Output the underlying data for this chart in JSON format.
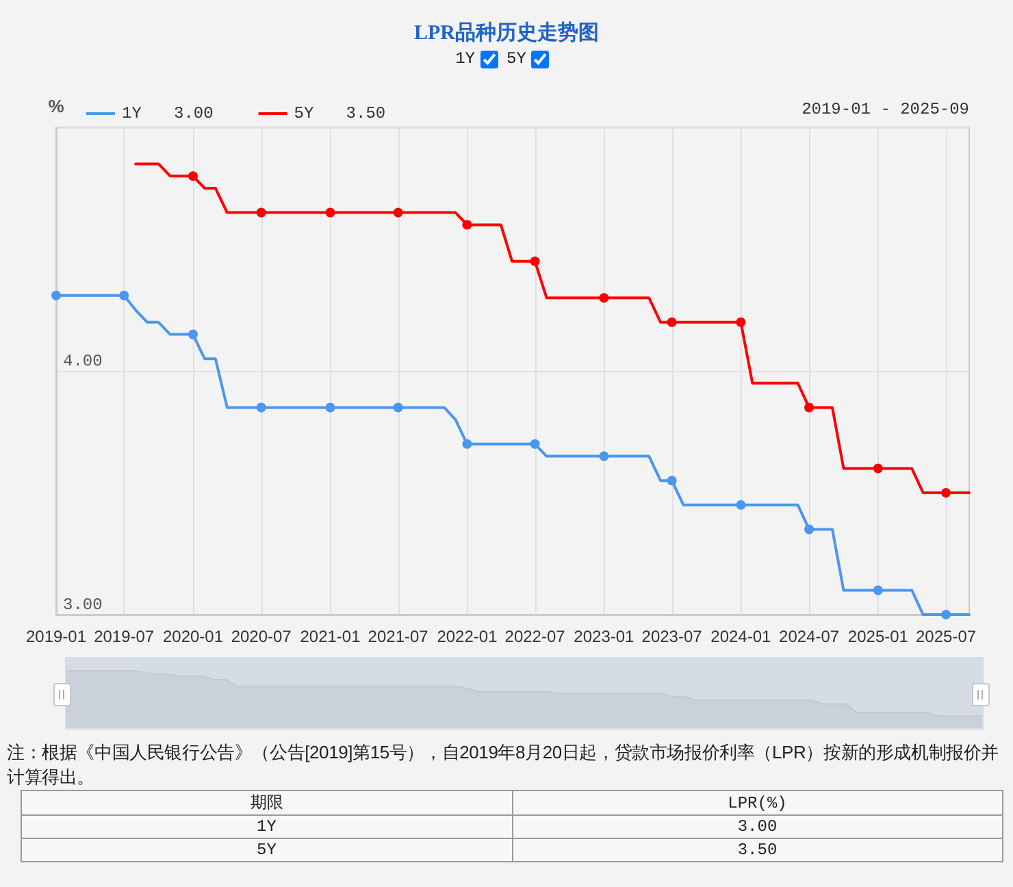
{
  "chart_data": [
    {
      "type": "line",
      "title": "LPR品种历史走势图",
      "ylabel": "%",
      "annotations": [
        "3.00",
        "3.50",
        "2019-01 - 2025-09",
        "注：根据《中国人民银行公告》（公告[2019]第15号），自2019年8月20日起，贷款市场报价利率（LPR）按新的形成机制报价并计算得出。"
      ],
      "series": [
        {
          "name": "1Y",
          "color": "#4a97ee",
          "x": [
            "2019-01",
            "2019-02",
            "2019-03",
            "2019-04",
            "2019-05",
            "2019-06",
            "2019-07",
            "2019-08",
            "2019-09",
            "2019-10",
            "2019-11",
            "2019-12",
            "2020-01",
            "2020-02",
            "2020-03",
            "2020-04",
            "2020-05",
            "2020-06",
            "2020-07",
            "2020-08",
            "2020-09",
            "2020-10",
            "2020-11",
            "2020-12",
            "2021-01",
            "2021-02",
            "2021-03",
            "2021-04",
            "2021-05",
            "2021-06",
            "2021-07",
            "2021-08",
            "2021-09",
            "2021-10",
            "2021-11",
            "2021-12",
            "2022-01",
            "2022-02",
            "2022-03",
            "2022-04",
            "2022-05",
            "2022-06",
            "2022-07",
            "2022-08",
            "2022-09",
            "2022-10",
            "2022-11",
            "2022-12",
            "2023-01",
            "2023-02",
            "2023-03",
            "2023-04",
            "2023-05",
            "2023-06",
            "2023-07",
            "2023-08",
            "2023-09",
            "2023-10",
            "2023-11",
            "2023-12",
            "2024-01",
            "2024-02",
            "2024-03",
            "2024-04",
            "2024-05",
            "2024-06",
            "2024-07",
            "2024-08",
            "2024-09",
            "2024-10",
            "2024-11",
            "2024-12",
            "2025-01",
            "2025-02",
            "2025-03",
            "2025-04",
            "2025-05",
            "2025-06",
            "2025-07",
            "2025-08",
            "2025-09"
          ],
          "values": [
            4.31,
            4.31,
            4.31,
            4.31,
            4.31,
            4.31,
            4.31,
            4.25,
            4.2,
            4.2,
            4.15,
            4.15,
            4.15,
            4.05,
            4.05,
            3.85,
            3.85,
            3.85,
            3.85,
            3.85,
            3.85,
            3.85,
            3.85,
            3.85,
            3.85,
            3.85,
            3.85,
            3.85,
            3.85,
            3.85,
            3.85,
            3.85,
            3.85,
            3.85,
            3.85,
            3.8,
            3.7,
            3.7,
            3.7,
            3.7,
            3.7,
            3.7,
            3.7,
            3.65,
            3.65,
            3.65,
            3.65,
            3.65,
            3.65,
            3.65,
            3.65,
            3.65,
            3.65,
            3.55,
            3.55,
            3.45,
            3.45,
            3.45,
            3.45,
            3.45,
            3.45,
            3.45,
            3.45,
            3.45,
            3.45,
            3.45,
            3.35,
            3.35,
            3.35,
            3.1,
            3.1,
            3.1,
            3.1,
            3.1,
            3.1,
            3.1,
            3.0,
            3.0,
            3.0,
            3.0,
            3.0
          ]
        },
        {
          "name": "5Y",
          "color": "#ff0000",
          "x": [
            "2019-08",
            "2019-09",
            "2019-10",
            "2019-11",
            "2019-12",
            "2020-01",
            "2020-02",
            "2020-03",
            "2020-04",
            "2020-05",
            "2020-06",
            "2020-07",
            "2020-08",
            "2020-09",
            "2020-10",
            "2020-11",
            "2020-12",
            "2021-01",
            "2021-02",
            "2021-03",
            "2021-04",
            "2021-05",
            "2021-06",
            "2021-07",
            "2021-08",
            "2021-09",
            "2021-10",
            "2021-11",
            "2021-12",
            "2022-01",
            "2022-02",
            "2022-03",
            "2022-04",
            "2022-05",
            "2022-06",
            "2022-07",
            "2022-08",
            "2022-09",
            "2022-10",
            "2022-11",
            "2022-12",
            "2023-01",
            "2023-02",
            "2023-03",
            "2023-04",
            "2023-05",
            "2023-06",
            "2023-07",
            "2023-08",
            "2023-09",
            "2023-10",
            "2023-11",
            "2023-12",
            "2024-01",
            "2024-02",
            "2024-03",
            "2024-04",
            "2024-05",
            "2024-06",
            "2024-07",
            "2024-08",
            "2024-09",
            "2024-10",
            "2024-11",
            "2024-12",
            "2025-01",
            "2025-02",
            "2025-03",
            "2025-04",
            "2025-05",
            "2025-06",
            "2025-07",
            "2025-08",
            "2025-09"
          ],
          "values": [
            4.85,
            4.85,
            4.85,
            4.8,
            4.8,
            4.8,
            4.75,
            4.75,
            4.65,
            4.65,
            4.65,
            4.65,
            4.65,
            4.65,
            4.65,
            4.65,
            4.65,
            4.65,
            4.65,
            4.65,
            4.65,
            4.65,
            4.65,
            4.65,
            4.65,
            4.65,
            4.65,
            4.65,
            4.65,
            4.6,
            4.6,
            4.6,
            4.6,
            4.45,
            4.45,
            4.45,
            4.3,
            4.3,
            4.3,
            4.3,
            4.3,
            4.3,
            4.3,
            4.3,
            4.3,
            4.3,
            4.2,
            4.2,
            4.2,
            4.2,
            4.2,
            4.2,
            4.2,
            4.2,
            3.95,
            3.95,
            3.95,
            3.95,
            3.95,
            3.85,
            3.85,
            3.85,
            3.6,
            3.6,
            3.6,
            3.6,
            3.6,
            3.6,
            3.6,
            3.5,
            3.5,
            3.5,
            3.5,
            3.5
          ]
        },
        {
          "type": "scatter",
          "color": "#4a97ee",
          "marker": "circle",
          "x": [
            "2019-01",
            "2019-07",
            "2020-01",
            "2020-07",
            "2021-01",
            "2021-07",
            "2022-01",
            "2022-07",
            "2023-01",
            "2023-07",
            "2024-01",
            "2024-07",
            "2025-01",
            "2025-07"
          ],
          "values": [
            4.31,
            4.31,
            4.15,
            3.85,
            3.85,
            3.85,
            3.7,
            3.7,
            3.65,
            3.55,
            3.45,
            3.35,
            3.1,
            3.0
          ]
        },
        {
          "type": "scatter",
          "color": "#ff0000",
          "marker": "circle",
          "x": [
            "2020-01",
            "2020-07",
            "2021-01",
            "2021-07",
            "2022-01",
            "2022-07",
            "2023-01",
            "2023-07",
            "2024-01",
            "2024-07",
            "2025-01",
            "2025-07"
          ],
          "values": [
            4.8,
            4.65,
            4.65,
            4.65,
            4.6,
            4.45,
            4.3,
            4.2,
            4.2,
            3.85,
            3.6,
            3.5
          ]
        }
      ],
      "xlim": [
        "2019-01",
        "2025-09"
      ],
      "xticks": [
        "2019-01",
        "2019-07",
        "2020-01",
        "2020-07",
        "2021-01",
        "2021-07",
        "2022-01",
        "2022-07",
        "2023-01",
        "2023-07",
        "2024-01",
        "2024-07",
        "2025-01",
        "2025-07"
      ],
      "ylim": [
        3,
        5
      ],
      "yticks": [
        {
          "value": 3,
          "label": "3.00"
        },
        {
          "value": 4,
          "label": "4.00"
        },
        {
          "value": 5,
          "label": null
        }
      ],
      "grid": true,
      "legend": "top left",
      "line_style": "solid"
    },
    {
      "type": "other",
      "annotations": [
        "期限",
        "LPR(%)",
        "1Y",
        "3.00",
        "5Y",
        "3.50"
      ]
    }
  ]
}
